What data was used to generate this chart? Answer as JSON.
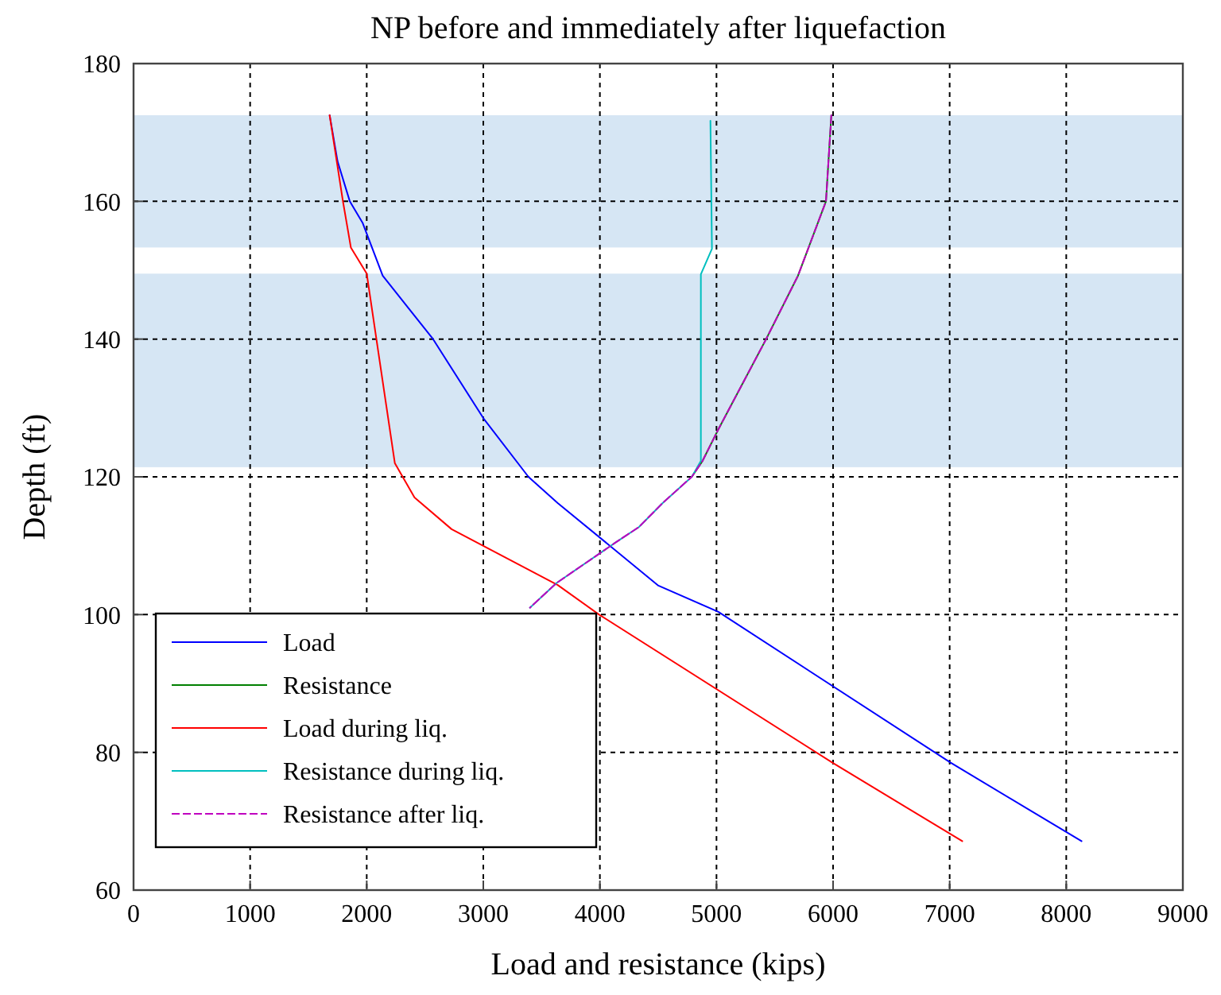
{
  "chart_data": {
    "type": "line",
    "title": "NP before and immediately after liquefaction",
    "xlabel": "Load and resistance (kips)",
    "ylabel": "Depth (ft)",
    "xlim": [
      0,
      9000
    ],
    "xticks": [
      0,
      1000,
      2000,
      3000,
      4000,
      5000,
      6000,
      7000,
      8000,
      9000
    ],
    "ylim": [
      60,
      180
    ],
    "yticks": [
      60,
      80,
      100,
      120,
      140,
      160,
      180
    ],
    "grid": true,
    "legend": "bottom left",
    "bands": [
      {
        "axis": "y",
        "from": 153.3,
        "to": 172.5,
        "color": "#d6e6f4"
      },
      {
        "axis": "y",
        "from": 121.4,
        "to": 149.5,
        "color": "#d6e6f4"
      }
    ],
    "series": [
      {
        "name": "Load",
        "color": "#0000ff",
        "line_style": "solid",
        "x": [
          1682,
          1750,
          1855,
          1964,
          2137,
          2569,
          3001,
          3387,
          3638,
          4502,
          5016,
          7008,
          8131
        ],
        "values": [
          172.5,
          165.8,
          160,
          156.9,
          149.2,
          140,
          128.5,
          120,
          116.2,
          104.2,
          100.4,
          78.5,
          67.1
        ]
      },
      {
        "name": "Resistance",
        "color": "#008000",
        "line_style": "solid",
        "x": [
          5985,
          5939,
          5699,
          5426,
          5016,
          4880,
          4788
        ],
        "values": [
          172.5,
          160,
          149.2,
          140,
          126.9,
          122.3,
          120
        ]
      },
      {
        "name": "Load during liq.",
        "color": "#ff0000",
        "line_style": "solid",
        "x": [
          1682,
          1796,
          1864,
          2000,
          2083,
          2241,
          2410,
          2728,
          3638,
          3993,
          5994,
          7108
        ],
        "values": [
          172.5,
          160,
          153.3,
          149.5,
          140,
          122,
          117,
          112.4,
          104.3,
          100,
          78.5,
          67.1
        ]
      },
      {
        "name": "Resistance during liq.",
        "color": "#00bfbf",
        "line_style": "solid",
        "x": [
          4948,
          4961,
          4866,
          4866,
          4788,
          4538,
          4334,
          4129,
          3629,
          3400
        ],
        "values": [
          171.7,
          153.1,
          149.4,
          122.3,
          120,
          116.2,
          112.7,
          110.4,
          104.6,
          101
        ]
      },
      {
        "name": "Resistance after liq.",
        "color": "#bf00bf",
        "line_style": "dashed",
        "x": [
          5985,
          5939,
          5699,
          5426,
          5016,
          4880,
          4788,
          4538,
          4334,
          4129,
          3629,
          3400
        ],
        "values": [
          172.5,
          160,
          149.2,
          140,
          126.9,
          122.3,
          120,
          116.2,
          112.7,
          110.4,
          104.6,
          101
        ]
      }
    ]
  }
}
